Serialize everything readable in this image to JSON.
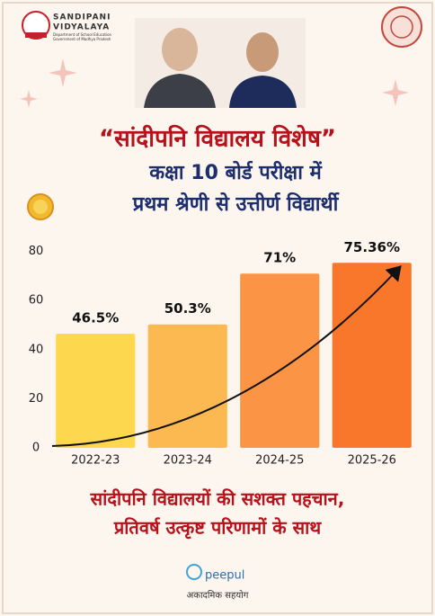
{
  "header": {
    "logo_name": "SANDIPANI",
    "logo_name2": "VIDYALAYA",
    "logo_sub": "Department of School Education",
    "logo_sub2": "Government of Madhya Pradesh"
  },
  "title": "“सांदीपनि विद्यालय विशेष”",
  "subtitle_lines": [
    "कक्षा 10 बोर्ड परीक्षा में",
    "प्रथम श्रेणी से उत्तीर्ण विद्यार्थी"
  ],
  "chart_data": {
    "type": "bar",
    "categories": [
      "2022-23",
      "2023-24",
      "2024-25",
      "2025-26"
    ],
    "values": [
      46.5,
      50.3,
      71,
      75.36
    ],
    "value_labels": [
      "46.5%",
      "50.3%",
      "71%",
      "75.36%"
    ],
    "colors": [
      "#fdd84f",
      "#fcb851",
      "#fb9545",
      "#f9772b"
    ],
    "ylim": [
      0,
      85
    ],
    "yticks": [
      0,
      20,
      40,
      60,
      80
    ],
    "grid": false
  },
  "footer": {
    "lines": [
      "सांदीपनि विद्यालयों की सशक्त पहचान,",
      "प्रतिवर्ष उत्कृष्ट परिणामों के साथ"
    ],
    "brand": "peepul",
    "brand_sub": "अकादमिक सहयोग"
  }
}
